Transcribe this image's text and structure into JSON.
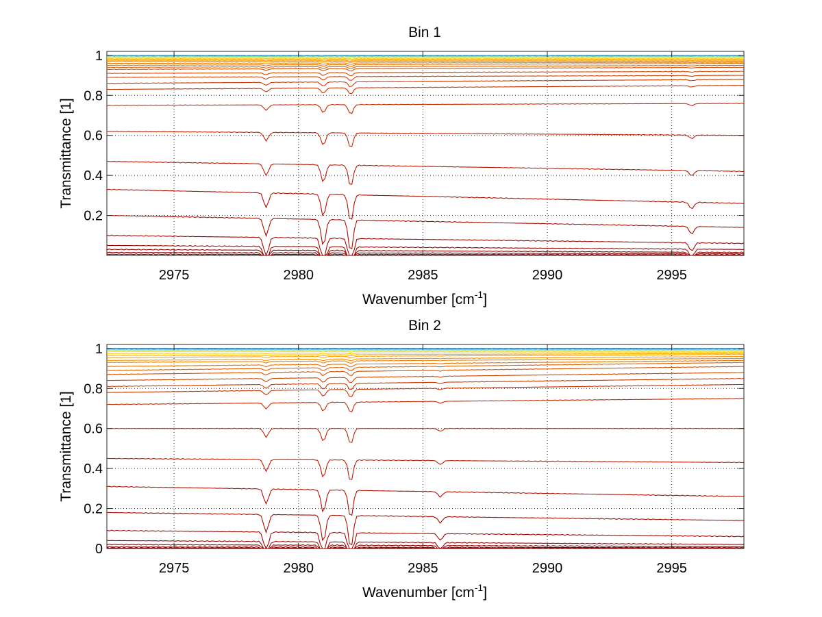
{
  "chart_data": [
    {
      "type": "line",
      "title": "Bin 1",
      "xlabel": "Wavenumber [cm",
      "xlabel_sup": "-1",
      "xlabel_close": "]",
      "ylabel": "Transmittance [1]",
      "xlim": [
        2972.3,
        2997.9
      ],
      "ylim": [
        0,
        1.02
      ],
      "grid": true,
      "xticks": [
        2975,
        2980,
        2985,
        2990,
        2995
      ],
      "xtick_labels": [
        "2975",
        "2980",
        "2985",
        "2990",
        "2995"
      ],
      "yticks": [
        0.2,
        0.4,
        0.6,
        0.8,
        1
      ],
      "ytick_labels": [
        "0.2",
        "0.4",
        "0.6",
        "0.8",
        "1"
      ],
      "absorption_lines": [
        {
          "x": 2978.7,
          "depth": 0.06
        },
        {
          "x": 2981.0,
          "depth": 0.09
        },
        {
          "x": 2982.1,
          "depth": 0.11
        },
        {
          "x": 2995.8,
          "depth": 0.025
        }
      ],
      "series": [
        {
          "start": 1.0,
          "end": 1.0,
          "color": "#00207f"
        },
        {
          "start": 1.0,
          "end": 1.0,
          "color": "#3aa0c8"
        },
        {
          "start": 0.995,
          "end": 0.995,
          "color": "#7fd0a0"
        },
        {
          "start": 0.99,
          "end": 0.99,
          "color": "#e8e020"
        },
        {
          "start": 0.985,
          "end": 0.985,
          "color": "#ffd000"
        },
        {
          "start": 0.98,
          "end": 0.98,
          "color": "#ffb000"
        },
        {
          "start": 0.975,
          "end": 0.975,
          "color": "#ffa000"
        },
        {
          "start": 0.97,
          "end": 0.97,
          "color": "#ff9000"
        },
        {
          "start": 0.96,
          "end": 0.965,
          "color": "#f08000"
        },
        {
          "start": 0.95,
          "end": 0.96,
          "color": "#e87000"
        },
        {
          "start": 0.94,
          "end": 0.95,
          "color": "#e06000"
        },
        {
          "start": 0.93,
          "end": 0.94,
          "color": "#d85000"
        },
        {
          "start": 0.91,
          "end": 0.92,
          "color": "#d84800"
        },
        {
          "start": 0.89,
          "end": 0.9,
          "color": "#d04000"
        },
        {
          "start": 0.86,
          "end": 0.88,
          "color": "#cc3800"
        },
        {
          "start": 0.83,
          "end": 0.85,
          "color": "#c83000"
        },
        {
          "start": 0.75,
          "end": 0.76,
          "color": "#cc2800"
        },
        {
          "start": 0.62,
          "end": 0.6,
          "color": "#c42000"
        },
        {
          "start": 0.47,
          "end": 0.42,
          "color": "#bb1800"
        },
        {
          "start": 0.33,
          "end": 0.26,
          "color": "#b01000"
        },
        {
          "start": 0.2,
          "end": 0.14,
          "color": "#a80c00"
        },
        {
          "start": 0.1,
          "end": 0.06,
          "color": "#a00800"
        },
        {
          "start": 0.05,
          "end": 0.03,
          "color": "#980600"
        },
        {
          "start": 0.03,
          "end": 0.015,
          "color": "#900400"
        },
        {
          "start": 0.015,
          "end": 0.008,
          "color": "#880000"
        },
        {
          "start": 0.006,
          "end": 0.003,
          "color": "#800000"
        }
      ]
    },
    {
      "type": "line",
      "title": "Bin 2",
      "xlabel": "Wavenumber [cm",
      "xlabel_sup": "-1",
      "xlabel_close": "]",
      "ylabel": "Transmittance [1]",
      "xlim": [
        2972.3,
        2997.9
      ],
      "ylim": [
        0,
        1.02
      ],
      "grid": true,
      "xticks": [
        2975,
        2980,
        2985,
        2990,
        2995
      ],
      "xtick_labels": [
        "2975",
        "2980",
        "2985",
        "2990",
        "2995"
      ],
      "yticks": [
        0,
        0.2,
        0.4,
        0.6,
        0.8,
        1
      ],
      "ytick_labels": [
        "0",
        "0.2",
        "0.4",
        "0.6",
        "0.8",
        "1"
      ],
      "absorption_lines": [
        {
          "x": 2978.7,
          "depth": 0.06
        },
        {
          "x": 2981.0,
          "depth": 0.09
        },
        {
          "x": 2982.1,
          "depth": 0.11
        },
        {
          "x": 2985.7,
          "depth": 0.02
        }
      ],
      "series": [
        {
          "start": 1.0,
          "end": 1.0,
          "color": "#00207f"
        },
        {
          "start": 1.0,
          "end": 1.0,
          "color": "#2080c0"
        },
        {
          "start": 0.995,
          "end": 0.995,
          "color": "#60c0e0"
        },
        {
          "start": 0.99,
          "end": 0.99,
          "color": "#c0e040"
        },
        {
          "start": 0.985,
          "end": 0.985,
          "color": "#ffe000"
        },
        {
          "start": 0.975,
          "end": 0.98,
          "color": "#ffc800"
        },
        {
          "start": 0.965,
          "end": 0.975,
          "color": "#ffb000"
        },
        {
          "start": 0.955,
          "end": 0.97,
          "color": "#ffa000"
        },
        {
          "start": 0.94,
          "end": 0.96,
          "color": "#f89000"
        },
        {
          "start": 0.93,
          "end": 0.95,
          "color": "#f08000"
        },
        {
          "start": 0.91,
          "end": 0.94,
          "color": "#e87000"
        },
        {
          "start": 0.89,
          "end": 0.93,
          "color": "#e06000"
        },
        {
          "start": 0.87,
          "end": 0.91,
          "color": "#d85000"
        },
        {
          "start": 0.84,
          "end": 0.88,
          "color": "#d04400"
        },
        {
          "start": 0.81,
          "end": 0.85,
          "color": "#cc3800"
        },
        {
          "start": 0.78,
          "end": 0.82,
          "color": "#c83000"
        },
        {
          "start": 0.72,
          "end": 0.75,
          "color": "#c82800"
        },
        {
          "start": 0.6,
          "end": 0.6,
          "color": "#c42000"
        },
        {
          "start": 0.45,
          "end": 0.43,
          "color": "#bb1800"
        },
        {
          "start": 0.31,
          "end": 0.26,
          "color": "#b01000"
        },
        {
          "start": 0.18,
          "end": 0.14,
          "color": "#a80c00"
        },
        {
          "start": 0.09,
          "end": 0.06,
          "color": "#a00800"
        },
        {
          "start": 0.04,
          "end": 0.02,
          "color": "#980600"
        },
        {
          "start": 0.02,
          "end": 0.01,
          "color": "#900400"
        },
        {
          "start": 0.008,
          "end": 0.004,
          "color": "#880000"
        },
        {
          "start": 0.003,
          "end": 0.001,
          "color": "#800000"
        }
      ]
    }
  ]
}
